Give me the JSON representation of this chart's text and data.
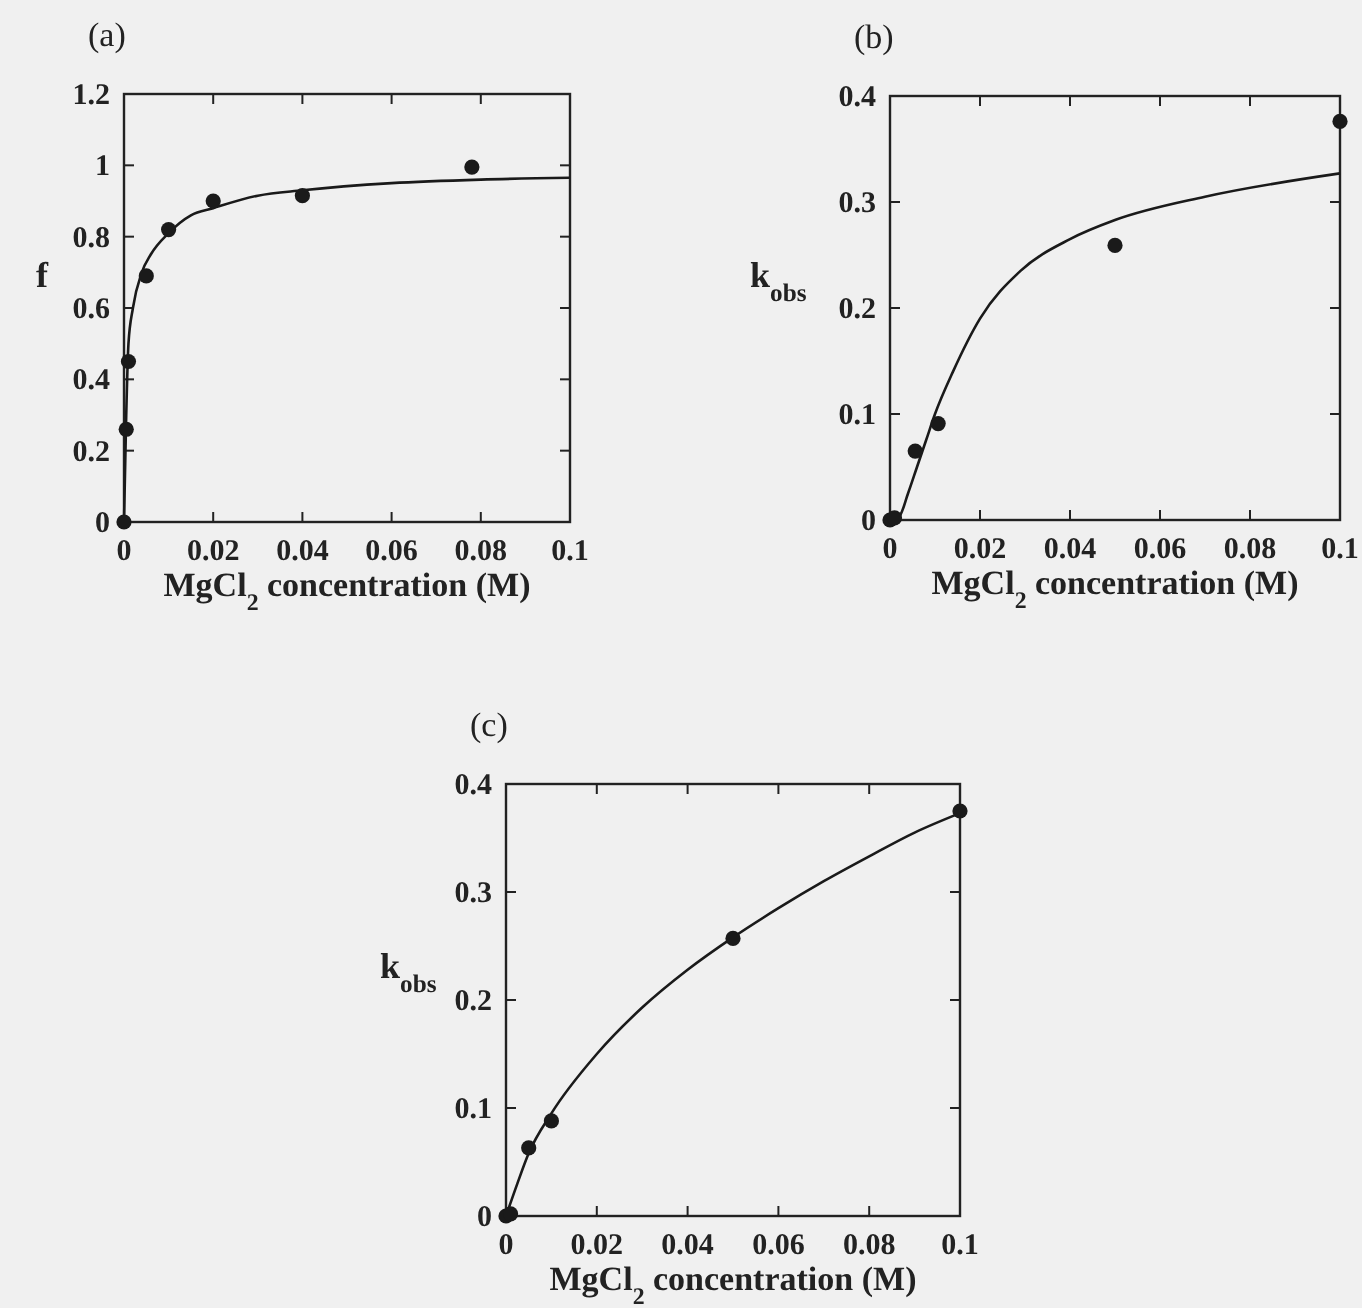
{
  "chart_data": [
    {
      "type": "scatter",
      "title": "(a)",
      "xlabel": "MgCl$_{2}$ concentration (M)",
      "ylabel": "f",
      "xlim": [
        0,
        0.1
      ],
      "ylim": [
        0,
        1.2
      ],
      "xticks": [
        0,
        0.02,
        0.04,
        0.06,
        0.08,
        0.1
      ],
      "yticks": [
        0,
        0.2,
        0.4,
        0.6,
        0.8,
        1,
        1.2
      ],
      "grid": false,
      "series": [
        {
          "marker": "circle",
          "color": "#1a1a1a",
          "x": [
            0,
            0.0005,
            0.001,
            0.005,
            0.01,
            0.02,
            0.04,
            0.078
          ],
          "values": [
            0,
            0.26,
            0.45,
            0.69,
            0.82,
            0.9,
            0.915,
            0.995
          ]
        },
        {
          "type": "line",
          "color": "#1a1a1a",
          "line_style": "solid",
          "x": [
            0,
            0.0005,
            0.001,
            0.002,
            0.004,
            0.006,
            0.01,
            0.015,
            0.02,
            0.03,
            0.04,
            0.06,
            0.08,
            0.1
          ],
          "values": [
            0,
            0.3,
            0.5,
            0.6,
            0.7,
            0.75,
            0.81,
            0.86,
            0.88,
            0.915,
            0.93,
            0.95,
            0.96,
            0.965
          ]
        }
      ]
    },
    {
      "type": "scatter",
      "title": "(b)",
      "xlabel": "MgCl$_{2}$ concentration (M)",
      "ylabel": "k$_{obs}$",
      "xlim": [
        0,
        0.1
      ],
      "ylim": [
        0,
        0.4
      ],
      "xticks": [
        0,
        0.02,
        0.04,
        0.06,
        0.08,
        0.1
      ],
      "yticks": [
        0,
        0.1,
        0.2,
        0.3,
        0.4
      ],
      "grid": false,
      "series": [
        {
          "marker": "circle",
          "color": "#1a1a1a",
          "x": [
            0,
            0.001,
            0.0056,
            0.0107,
            0.05,
            0.1
          ],
          "values": [
            0,
            0.002,
            0.065,
            0.091,
            0.259,
            0.376
          ]
        },
        {
          "type": "line",
          "color": "#1a1a1a",
          "line_style": "solid",
          "x": [
            0,
            0.002,
            0.004,
            0.006,
            0.008,
            0.01,
            0.014,
            0.02,
            0.029,
            0.04,
            0.05,
            0.07,
            0.1
          ],
          "values": [
            0,
            0.003,
            0.025,
            0.05,
            0.075,
            0.1,
            0.14,
            0.19,
            0.235,
            0.265,
            0.283,
            0.305,
            0.327
          ]
        }
      ]
    },
    {
      "type": "scatter",
      "title": "(c)",
      "xlabel": "MgCl$_{2}$ concentration (M)",
      "ylabel": "k$_{obs}$",
      "xlim": [
        0,
        0.1
      ],
      "ylim": [
        0,
        0.4
      ],
      "xticks": [
        0,
        0.02,
        0.04,
        0.06,
        0.08,
        0.1
      ],
      "yticks": [
        0,
        0.1,
        0.2,
        0.3,
        0.4
      ],
      "grid": false,
      "series": [
        {
          "marker": "circle",
          "color": "#1a1a1a",
          "x": [
            0,
            0.001,
            0.005,
            0.01,
            0.05,
            0.1
          ],
          "values": [
            0,
            0.002,
            0.063,
            0.088,
            0.257,
            0.375
          ]
        },
        {
          "type": "line",
          "color": "#1a1a1a",
          "line_style": "solid",
          "x": [
            0,
            0.0025,
            0.005,
            0.01,
            0.02,
            0.03,
            0.04,
            0.05,
            0.06,
            0.07,
            0.08,
            0.09,
            0.1
          ],
          "values": [
            0,
            0.03,
            0.058,
            0.095,
            0.15,
            0.193,
            0.228,
            0.258,
            0.285,
            0.31,
            0.333,
            0.355,
            0.373
          ]
        }
      ]
    }
  ]
}
